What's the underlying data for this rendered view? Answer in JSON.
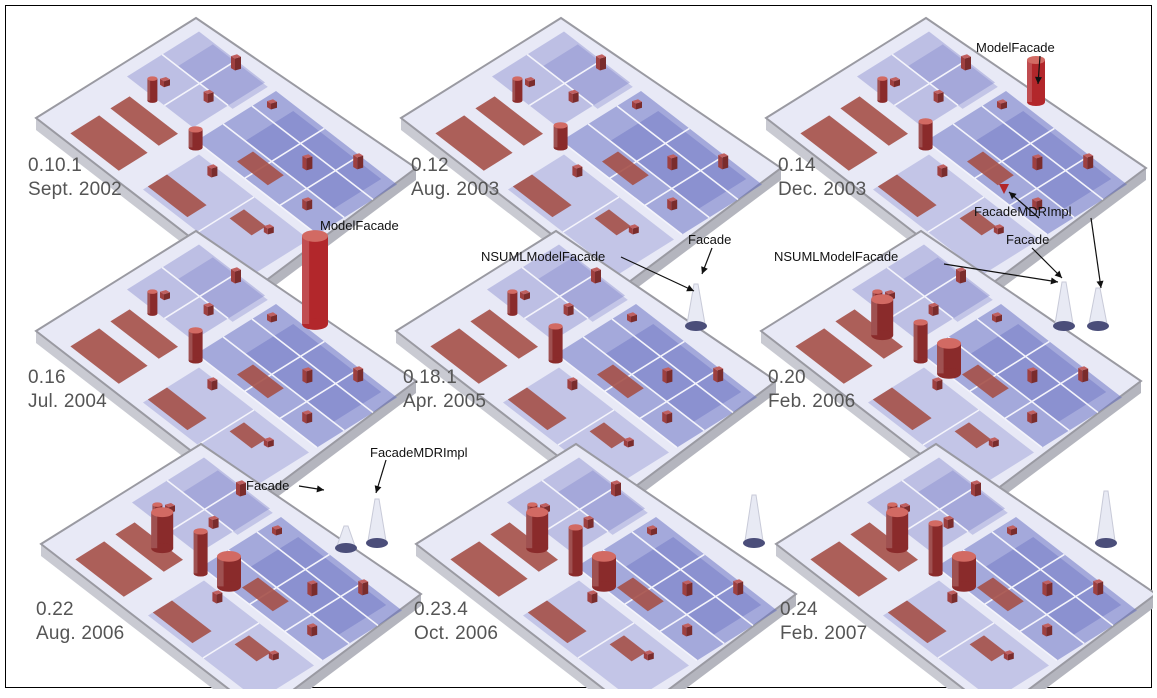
{
  "colors": {
    "board_light": "#e8e9f6",
    "board_blue": "#6c74c4",
    "board_edge": "#9a9aa2",
    "board_base": "#c9cad2",
    "tile_red": "#a55048",
    "tower_red": "#b2272b",
    "ghost": "#e8eaf4"
  },
  "panels": [
    {
      "id": "p0101",
      "version": "0.10.1",
      "date": "Sept. 2002"
    },
    {
      "id": "p012",
      "version": "0.12",
      "date": "Aug. 2003"
    },
    {
      "id": "p014",
      "version": "0.14",
      "date": "Dec. 2003"
    },
    {
      "id": "p016",
      "version": "0.16",
      "date": "Jul. 2004"
    },
    {
      "id": "p0181",
      "version": "0.18.1",
      "date": "Apr. 2005"
    },
    {
      "id": "p020",
      "version": "0.20",
      "date": "Feb. 2006"
    },
    {
      "id": "p022",
      "version": "0.22",
      "date": "Aug. 2006"
    },
    {
      "id": "p0234",
      "version": "0.23.4",
      "date": "Oct. 2006"
    },
    {
      "id": "p024",
      "version": "0.24",
      "date": "Feb. 2007"
    }
  ],
  "callouts": {
    "model_facade_014": "ModelFacade",
    "facade_mdr_impl_014": "FacadeMDRImpl",
    "model_facade_016": "ModelFacade",
    "nsuml_model_facade_0181": "NSUMLModelFacade",
    "facade_0181": "Facade",
    "nsuml_model_facade_020": "NSUMLModelFacade",
    "facade_020": "Facade",
    "facade_022": "Facade",
    "facade_mdr_impl_022": "FacadeMDRImpl"
  }
}
